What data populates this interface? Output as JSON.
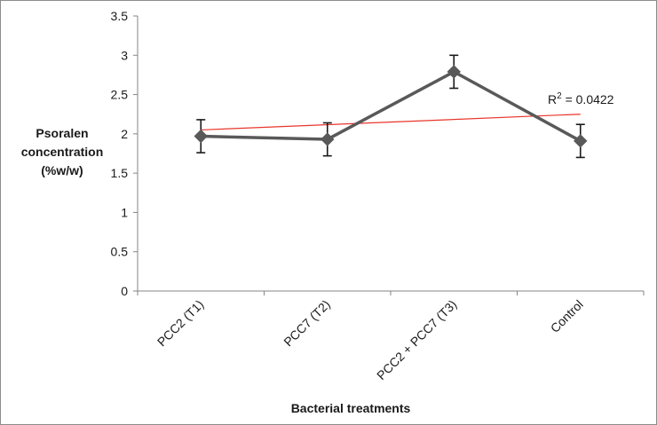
{
  "chart_data": {
    "type": "line",
    "categories": [
      "PCC2 (T1)",
      "PCC7 (T2)",
      "PCC2 + PCC7 (T3)",
      "Control"
    ],
    "series": [
      {
        "values": [
          1.97,
          1.93,
          2.79,
          1.91
        ],
        "error": [
          0.21,
          0.21,
          0.21,
          0.21
        ],
        "color": "#595959",
        "marker": "diamond"
      }
    ],
    "trendline": {
      "type": "linear",
      "start": 2.05,
      "end": 2.25,
      "color": "#e8362c",
      "label": {
        "prefix": "R",
        "sup": "2",
        "text": " = 0.0422"
      }
    },
    "xlabel": "Bacterial treatments",
    "ylabel": [
      "Psoralen",
      "concentration",
      "(%w/w)"
    ],
    "yticks": [
      "0",
      "0.5",
      "1",
      "1.5",
      "2",
      "2.5",
      "3",
      "3.5"
    ],
    "ylim": [
      0,
      3.5
    ],
    "grid": false,
    "legend": "none"
  }
}
